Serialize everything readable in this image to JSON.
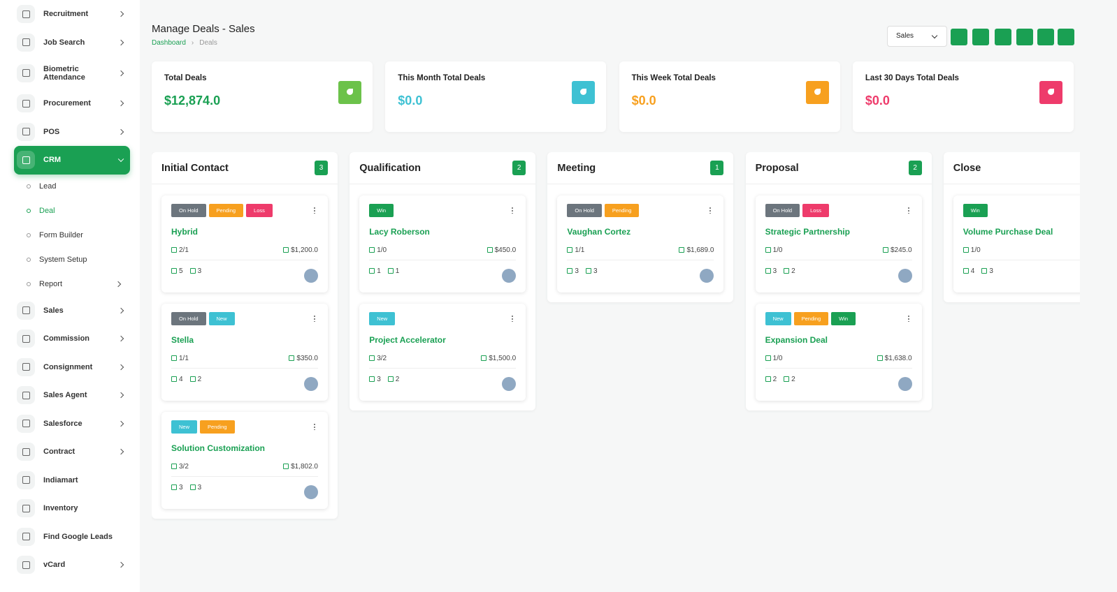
{
  "sidebar": {
    "items": [
      {
        "label": "Recruitment",
        "expandable": true
      },
      {
        "label": "Job Search",
        "expandable": true
      },
      {
        "label": "Biometric Attendance",
        "expandable": true
      },
      {
        "label": "Procurement",
        "expandable": true
      },
      {
        "label": "POS",
        "expandable": true
      },
      {
        "label": "CRM",
        "expandable": true,
        "active": true,
        "children": [
          {
            "label": "Lead"
          },
          {
            "label": "Deal",
            "active": true
          },
          {
            "label": "Form Builder"
          },
          {
            "label": "System Setup"
          },
          {
            "label": "Report",
            "expandable": true
          }
        ]
      },
      {
        "label": "Sales",
        "expandable": true
      },
      {
        "label": "Commission",
        "expandable": true
      },
      {
        "label": "Consignment",
        "expandable": true
      },
      {
        "label": "Sales Agent",
        "expandable": true
      },
      {
        "label": "Salesforce",
        "expandable": true
      },
      {
        "label": "Contract",
        "expandable": true
      },
      {
        "label": "Indiamart"
      },
      {
        "label": "Inventory"
      },
      {
        "label": "Find Google Leads"
      },
      {
        "label": "vCard",
        "expandable": true
      }
    ]
  },
  "header": {
    "title": "Manage Deals - Sales",
    "breadcrumb": [
      "Dashboard",
      "Deals"
    ],
    "select": "Sales"
  },
  "stats": [
    {
      "label": "Total Deals",
      "value": "$12,874.0",
      "color": "#1aa053",
      "icon_color": "#6cc24a"
    },
    {
      "label": "This Month Total Deals",
      "value": "$0.0",
      "color": "#3ec1d3",
      "icon_color": "#3ec1d3"
    },
    {
      "label": "This Week Total Deals",
      "value": "$0.0",
      "color": "#f7a01f",
      "icon_color": "#f7a01f"
    },
    {
      "label": "Last 30 Days Total Deals",
      "value": "$0.0",
      "color": "#ee3b6b",
      "icon_color": "#ee3b6b"
    }
  ],
  "tag_colors": {
    "On Hold": "#6c757d",
    "Pending": "#f7a01f",
    "Loss": "#ee3b6b",
    "New": "#3ec1d3",
    "Win": "#1aa053"
  },
  "columns": [
    {
      "name": "Initial Contact",
      "count": 3,
      "cards": [
        {
          "tags": [
            "On Hold",
            "Pending",
            "Loss"
          ],
          "name": "Hybrid",
          "tasks": "2/1",
          "amount": "$1,200.0",
          "products": 5,
          "users": 3
        },
        {
          "tags": [
            "On Hold",
            "New"
          ],
          "name": "Stella",
          "tasks": "1/1",
          "amount": "$350.0",
          "products": 4,
          "users": 2
        },
        {
          "tags": [
            "New",
            "Pending"
          ],
          "name": "Solution Customization",
          "tasks": "3/2",
          "amount": "$1,802.0",
          "products": 3,
          "users": 3
        }
      ]
    },
    {
      "name": "Qualification",
      "count": 2,
      "cards": [
        {
          "tags": [
            "Win"
          ],
          "name": "Lacy Roberson",
          "tasks": "1/0",
          "amount": "$450.0",
          "products": 1,
          "users": 1
        },
        {
          "tags": [
            "New"
          ],
          "name": "Project Accelerator",
          "tasks": "3/2",
          "amount": "$1,500.0",
          "products": 3,
          "users": 2
        }
      ]
    },
    {
      "name": "Meeting",
      "count": 1,
      "cards": [
        {
          "tags": [
            "On Hold",
            "Pending"
          ],
          "name": "Vaughan Cortez",
          "tasks": "1/1",
          "amount": "$1,689.0",
          "products": 3,
          "users": 3
        }
      ]
    },
    {
      "name": "Proposal",
      "count": 2,
      "cards": [
        {
          "tags": [
            "On Hold",
            "Loss"
          ],
          "name": "Strategic Partnership",
          "tasks": "1/0",
          "amount": "$245.0",
          "products": 3,
          "users": 2
        },
        {
          "tags": [
            "New",
            "Pending",
            "Win"
          ],
          "name": "Expansion Deal",
          "tasks": "1/0",
          "amount": "$1,638.0",
          "products": 2,
          "users": 2
        }
      ]
    },
    {
      "name": "Close",
      "cards": [
        {
          "tags": [
            "Win"
          ],
          "name": "Volume Purchase Deal",
          "tasks": "1/0",
          "amount": "$",
          "products": 4,
          "users": 3
        }
      ]
    }
  ]
}
